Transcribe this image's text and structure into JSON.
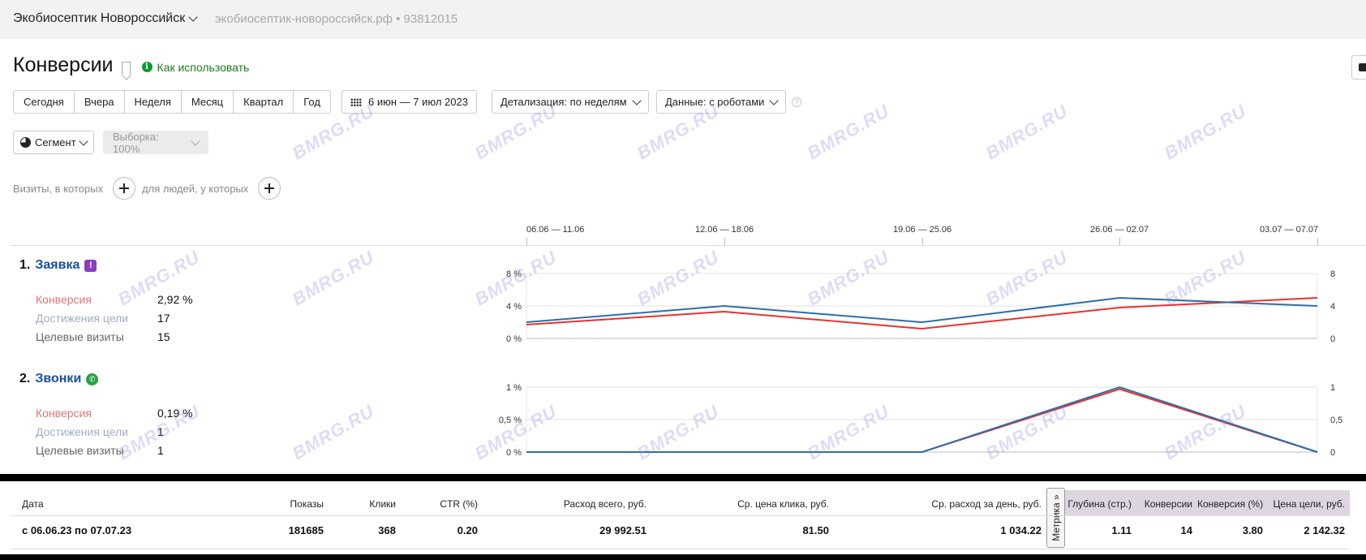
{
  "topbar": {
    "counter_name": "Экобиосептик Новороссийск",
    "counter_site": "экобиосептик-новороссийск.рф • 93812015"
  },
  "header": {
    "title": "Конверсии",
    "help_link": "Как использовать"
  },
  "periods": [
    "Сегодня",
    "Вчера",
    "Неделя",
    "Месяц",
    "Квартал",
    "Год"
  ],
  "controls": {
    "date_range": "6 июн — 7 июл 2023",
    "detail": "Детализация: по неделям",
    "data": "Данные: с роботами",
    "help": "?",
    "segment": "Сегмент",
    "sample": "Выборка: 100%"
  },
  "conditions": {
    "visits_label": "Визиты, в которых",
    "people_label": "для людей, у которых"
  },
  "timeline": [
    "06.06 — 11.06",
    "12.06 — 18.06",
    "19.06 — 25.06",
    "26.06 — 02.07",
    "03.07 — 07.07"
  ],
  "goals": [
    {
      "number": "1.",
      "name": "Заявка",
      "badge_icon": "exclamation-icon",
      "metrics": {
        "conversion_label": "Конверсия",
        "conversion_value": "2,92 %",
        "achievements_label": "Достижения цели",
        "achievements_value": "17",
        "visits_label": "Целевые визиты",
        "visits_value": "15"
      },
      "left_ticks": [
        "8 %",
        "4 %",
        "0 %"
      ],
      "right_ticks": [
        "8",
        "4",
        "0"
      ]
    },
    {
      "number": "2.",
      "name": "Звонки",
      "badge_icon": "phone-icon",
      "metrics": {
        "conversion_label": "Конверсия",
        "conversion_value": "0,19 %",
        "achievements_label": "Достижения цели",
        "achievements_value": "1",
        "visits_label": "Целевые визиты",
        "visits_value": "1"
      },
      "left_ticks": [
        "1 %",
        "0,5 %",
        "0 %"
      ],
      "right_ticks": [
        "1",
        "0,5",
        "0"
      ]
    }
  ],
  "chart_data": [
    {
      "type": "line",
      "title": "Заявка",
      "categories": [
        "06.06 — 11.06",
        "12.06 — 18.06",
        "19.06 — 25.06",
        "26.06 — 02.07",
        "03.07 — 07.07"
      ],
      "series": [
        {
          "values": [
            1.7,
            3.3,
            1.2,
            3.8,
            5.0
          ],
          "color": "#e8322f"
        },
        {
          "values": [
            2,
            4,
            2,
            5,
            4
          ],
          "color": "#2d6fa8"
        }
      ],
      "ylim_left": [
        0,
        8
      ],
      "ylim_right": [
        0,
        8
      ],
      "grid": true
    },
    {
      "type": "line",
      "title": "Звонки",
      "categories": [
        "06.06 — 11.06",
        "12.06 — 18.06",
        "19.06 — 25.06",
        "26.06 — 02.07",
        "03.07 — 07.07"
      ],
      "series": [
        {
          "values": [
            0,
            0,
            0,
            0.97,
            0
          ],
          "color": "#e8322f"
        },
        {
          "values": [
            0,
            0,
            0,
            1,
            0
          ],
          "color": "#2d6fa8"
        }
      ],
      "ylim_left": [
        0,
        1
      ],
      "ylim_right": [
        0,
        1
      ],
      "grid": true
    }
  ],
  "table": {
    "headers": {
      "date": "Дата",
      "impressions": "Показы",
      "clicks": "Клики",
      "ctr": "CTR (%)",
      "spend_total": "Расход всего, руб.",
      "avg_cpc": "Ср. цена клика, руб.",
      "avg_daily": "Ср. расход за день, руб.",
      "depth": "Глубина (стр.)",
      "conversions": "Конверсии",
      "conversion_pct": "Конверсия (%)",
      "goal_price": "Цена цели, руб."
    },
    "metrika_tab": "Метрика »",
    "row": {
      "date": "с 06.06.23 по 07.07.23",
      "impressions": "181685",
      "clicks": "368",
      "ctr": "0.20",
      "spend_total": "29 992.51",
      "avg_cpc": "81.50",
      "avg_daily": "1 034.22",
      "depth": "1.11",
      "conversions": "14",
      "conversion_pct": "3.80",
      "goal_price": "2 142.32"
    }
  },
  "watermark_text": "BMRG.RU",
  "colors": {
    "red_series": "#e8322f",
    "blue_series": "#2d6fa8",
    "goal_link": "#1a4fa0",
    "help_green": "#0d9a2d"
  }
}
